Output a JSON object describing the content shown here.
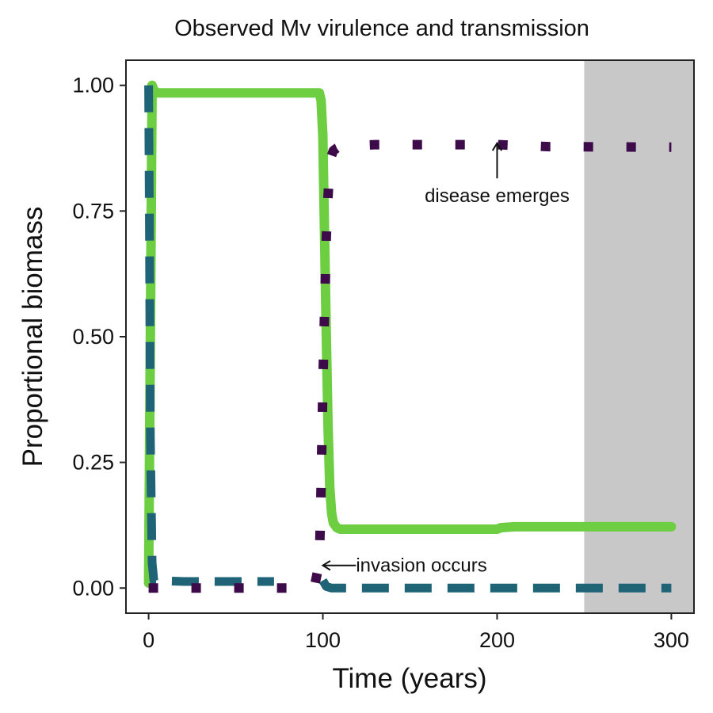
{
  "chart_data": {
    "type": "line",
    "title": "Observed Mv virulence and transmission",
    "xlabel": "Time (years)",
    "ylabel": "Proportional biomass",
    "xlim": [
      -13,
      313
    ],
    "ylim": [
      -0.05,
      1.05
    ],
    "xticks": [
      0,
      100,
      200,
      300
    ],
    "xtick_labels": [
      "0",
      "100",
      "200",
      "300"
    ],
    "yticks": [
      0,
      0.25,
      0.5,
      0.75,
      1
    ],
    "ytick_labels": [
      "0.00",
      "0.25",
      "0.50",
      "0.75",
      "1.00"
    ],
    "grid": false,
    "legend": "none",
    "shaded_region": {
      "x": [
        250,
        313
      ],
      "color": "#c8c8c8"
    },
    "series": [
      {
        "color": "#6cce40",
        "style": "solid",
        "x": [
          0,
          1,
          2,
          3,
          5,
          10,
          50,
          98,
          99,
          100,
          101,
          102,
          103,
          104,
          105,
          106,
          108,
          110,
          150,
          200,
          202,
          210,
          250,
          300
        ],
        "y": [
          0.01,
          0.5,
          1.0,
          0.99,
          0.985,
          0.985,
          0.985,
          0.985,
          0.97,
          0.9,
          0.7,
          0.5,
          0.32,
          0.2,
          0.15,
          0.13,
          0.12,
          0.117,
          0.117,
          0.117,
          0.12,
          0.122,
          0.122,
          0.122
        ]
      },
      {
        "color": "#1f6377",
        "style": "dashed",
        "x": [
          0,
          0.5,
          1,
          2,
          3,
          5,
          20,
          50,
          72
        ],
        "y": [
          1.0,
          0.7,
          0.3,
          0.05,
          0.015,
          0.015,
          0.013,
          0.013,
          0.013
        ]
      },
      {
        "color": "#1f6377",
        "style": "dashed",
        "x": [
          100,
          102,
          105,
          150,
          200,
          250,
          300
        ],
        "y": [
          0.015,
          0.003,
          0.0,
          0.0,
          0.0,
          0.0,
          0.0
        ]
      },
      {
        "color": "#3d0a4a",
        "style": "dotted",
        "x": [
          0,
          50,
          95,
          98,
          99,
          100,
          101,
          102,
          103,
          104,
          105,
          106,
          108,
          110,
          115,
          130,
          180,
          200,
          230,
          300
        ],
        "y": [
          0.0,
          0.0,
          0.0,
          0.05,
          0.2,
          0.4,
          0.55,
          0.7,
          0.78,
          0.84,
          0.86,
          0.87,
          0.875,
          0.878,
          0.88,
          0.882,
          0.882,
          0.882,
          0.878,
          0.877
        ]
      }
    ],
    "annotations": [
      {
        "text": "disease emerges",
        "arrow_to": [
          200,
          0.885
        ],
        "arrow_from": [
          200,
          0.815
        ]
      },
      {
        "text": "invasion occurs",
        "arrow_to": [
          100,
          0.045
        ],
        "arrow_from": [
          119,
          0.045
        ]
      }
    ]
  }
}
